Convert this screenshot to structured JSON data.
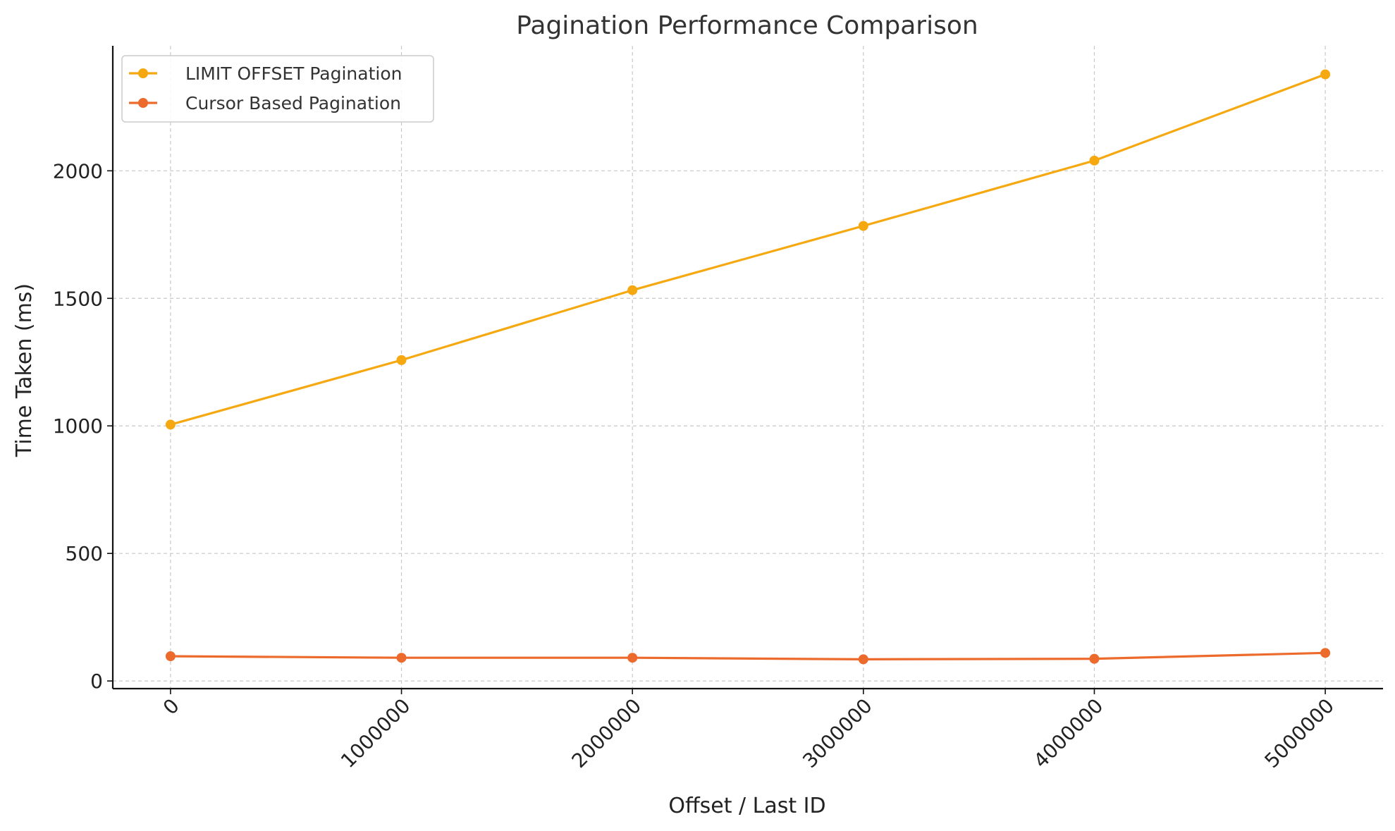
{
  "chart_data": {
    "type": "line",
    "title": "Pagination Performance Comparison",
    "xlabel": "Offset / Last ID",
    "ylabel": "Time Taken (ms)",
    "x": [
      0,
      1000000,
      2000000,
      3000000,
      4000000,
      5000000
    ],
    "x_tick_labels": [
      "0",
      "1000000",
      "2000000",
      "3000000",
      "4000000",
      "5000000"
    ],
    "y_ticks": [
      0,
      500,
      1000,
      1500,
      2000
    ],
    "y_tick_labels": [
      "0",
      "500",
      "1000",
      "1500",
      "2000"
    ],
    "xlim": [
      -250000,
      5250000
    ],
    "ylim": [
      -30,
      2490
    ],
    "grid": true,
    "legend_position": "top-left",
    "series": [
      {
        "name": "LIMIT OFFSET Pagination",
        "color": "#f5a810",
        "values": [
          1005,
          1258,
          1532,
          1784,
          2040,
          2378
        ]
      },
      {
        "name": "Cursor Based Pagination",
        "color": "#ec6a2c",
        "values": [
          97,
          91,
          91,
          85,
          87,
          110
        ]
      }
    ]
  }
}
